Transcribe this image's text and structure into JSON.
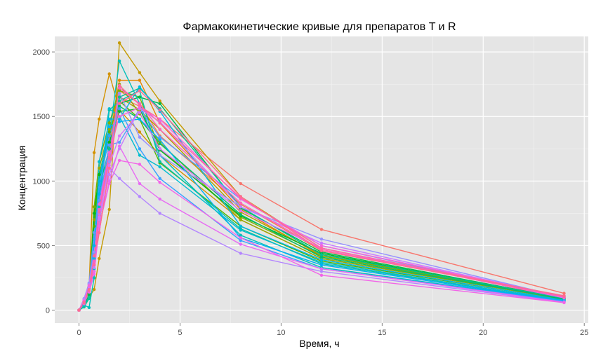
{
  "chart_data": {
    "type": "line",
    "title": "Фармакокинетические кривые для препаратов T и R",
    "xlabel": "Время, ч",
    "ylabel": "Концентрация",
    "xlim": [
      -1.2,
      25.2
    ],
    "ylim": [
      -100,
      2120
    ],
    "xticks": [
      0,
      5,
      10,
      15,
      20,
      25
    ],
    "yticks": [
      0,
      500,
      1000,
      1500,
      2000
    ],
    "x_tick_labels": [
      "0",
      "5",
      "10",
      "15",
      "20",
      "25"
    ],
    "y_tick_labels": [
      "0",
      "500",
      "1000",
      "1500",
      "2000"
    ],
    "grid": true,
    "legend": "none",
    "background": "#e5e5e5",
    "x": [
      0,
      0.25,
      0.5,
      0.75,
      1,
      1.5,
      2,
      3,
      4,
      8,
      12,
      24
    ],
    "series": [
      {
        "color": "#f8766d",
        "values": [
          0,
          60,
          150,
          350,
          600,
          1100,
          1650,
          1580,
          1480,
          980,
          625,
          130
        ]
      },
      {
        "color": "#f27d52",
        "values": [
          0,
          55,
          140,
          320,
          650,
          1250,
          1700,
          1600,
          1350,
          820,
          460,
          110
        ]
      },
      {
        "color": "#e58700",
        "values": [
          0,
          50,
          130,
          300,
          700,
          1300,
          1780,
          1780,
          1450,
          780,
          420,
          100
        ]
      },
      {
        "color": "#d39200",
        "values": [
          0,
          70,
          180,
          1220,
          1480,
          1830,
          1550,
          1380,
          1200,
          700,
          400,
          90
        ]
      },
      {
        "color": "#c49a00",
        "values": [
          0,
          40,
          100,
          160,
          400,
          780,
          2070,
          1840,
          1620,
          880,
          480,
          95
        ]
      },
      {
        "color": "#b0a100",
        "values": [
          0,
          60,
          150,
          500,
          1000,
          1350,
          1650,
          1550,
          1400,
          760,
          430,
          90
        ]
      },
      {
        "color": "#99a800",
        "values": [
          0,
          50,
          120,
          700,
          1100,
          1400,
          1750,
          1520,
          1300,
          700,
          400,
          85
        ]
      },
      {
        "color": "#7cae00",
        "values": [
          0,
          45,
          140,
          800,
          1150,
          1450,
          1700,
          1650,
          1250,
          720,
          420,
          90
        ]
      },
      {
        "color": "#53b400",
        "values": [
          0,
          30,
          110,
          650,
          1050,
          1380,
          1620,
          1480,
          1140,
          650,
          380,
          80
        ]
      },
      {
        "color": "#00b81f",
        "values": [
          0,
          40,
          130,
          750,
          1050,
          1300,
          1540,
          1560,
          1240,
          730,
          440,
          85
        ]
      },
      {
        "color": "#00bb4e",
        "values": [
          0,
          35,
          120,
          600,
          950,
          1250,
          1600,
          1650,
          1600,
          790,
          450,
          90
        ]
      },
      {
        "color": "#00be6c",
        "values": [
          0,
          50,
          140,
          550,
          900,
          1200,
          1580,
          1480,
          1290,
          740,
          410,
          88
        ]
      },
      {
        "color": "#00c094",
        "values": [
          0,
          25,
          90,
          450,
          850,
          1250,
          1650,
          1720,
          1560,
          800,
          430,
          92
        ]
      },
      {
        "color": "#00c1a7",
        "values": [
          0,
          30,
          100,
          400,
          800,
          1550,
          1620,
          1700,
          1150,
          630,
          360,
          75
        ]
      },
      {
        "color": "#00c0bb",
        "values": [
          0,
          40,
          20,
          250,
          1000,
          1350,
          1930,
          1600,
          1200,
          580,
          330,
          70
        ]
      },
      {
        "color": "#00bdd0",
        "values": [
          0,
          50,
          160,
          320,
          1150,
          1560,
          1500,
          1200,
          1110,
          620,
          370,
          72
        ]
      },
      {
        "color": "#00b8e5",
        "values": [
          0,
          45,
          150,
          400,
          1000,
          1480,
          1480,
          1730,
          1540,
          650,
          390,
          78
        ]
      },
      {
        "color": "#00b0f6",
        "values": [
          0,
          60,
          170,
          500,
          900,
          1420,
          1460,
          1480,
          1320,
          560,
          350,
          70
        ]
      },
      {
        "color": "#35a2ff",
        "values": [
          0,
          80,
          200,
          550,
          950,
          1350,
          1560,
          1250,
          1020,
          540,
          320,
          68
        ]
      },
      {
        "color": "#5c9aff",
        "values": [
          0,
          70,
          210,
          600,
          850,
          1280,
          1300,
          1560,
          1340,
          860,
          500,
          95
        ]
      },
      {
        "color": "#9590ff",
        "values": [
          0,
          90,
          210,
          450,
          750,
          1150,
          1680,
          1340,
          1200,
          800,
          550,
          100
        ]
      },
      {
        "color": "#b385ff",
        "values": [
          0,
          85,
          200,
          350,
          750,
          1100,
          1020,
          880,
          750,
          440,
          300,
          60
        ]
      },
      {
        "color": "#c77cff",
        "values": [
          0,
          60,
          170,
          330,
          700,
          1050,
          1250,
          1560,
          1460,
          800,
          520,
          100
        ]
      },
      {
        "color": "#d973fc",
        "values": [
          0,
          75,
          180,
          380,
          720,
          1120,
          1350,
          1530,
          1250,
          770,
          480,
          95
        ]
      },
      {
        "color": "#e76bf3",
        "values": [
          0,
          55,
          160,
          300,
          650,
          1000,
          1270,
          980,
          860,
          510,
          320,
          62
        ]
      },
      {
        "color": "#f265e8",
        "values": [
          0,
          50,
          140,
          280,
          650,
          980,
          1160,
          1130,
          990,
          560,
          270,
          58
        ]
      },
      {
        "color": "#fa62db",
        "values": [
          0,
          70,
          190,
          420,
          820,
          1220,
          1500,
          1570,
          1480,
          860,
          500,
          105
        ]
      },
      {
        "color": "#ff62bc",
        "values": [
          0,
          65,
          160,
          380,
          780,
          1200,
          1720,
          1600,
          1400,
          830,
          470,
          100
        ]
      },
      {
        "color": "#ff67a4",
        "values": [
          0,
          60,
          150,
          350,
          760,
          1180,
          1740,
          1590,
          1450,
          870,
          480,
          108
        ]
      },
      {
        "color": "#ff6c91",
        "values": [
          0,
          55,
          160,
          420,
          600,
          1100,
          1600,
          1700,
          1550,
          880,
          460,
          112
        ]
      }
    ]
  }
}
